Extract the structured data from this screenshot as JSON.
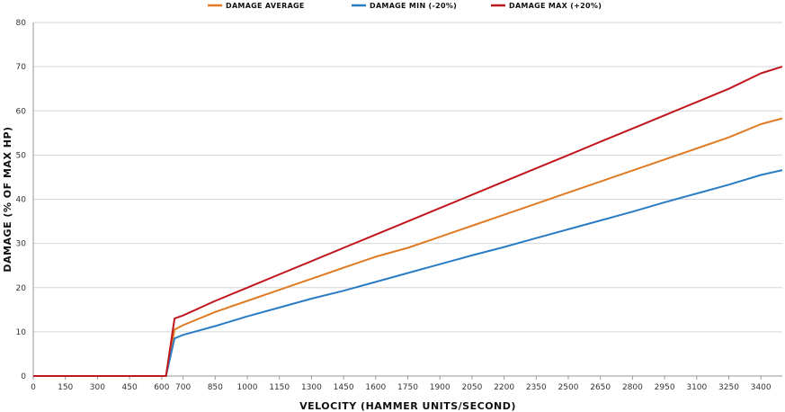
{
  "chart_data": {
    "type": "line",
    "xlabel": "VELOCITY (HAMMER UNITS/SECOND)",
    "ylabel": "DAMAGE (% OF MAX HP)",
    "xlim": [
      0,
      3500
    ],
    "ylim": [
      0,
      80
    ],
    "x_ticks": [
      0,
      150,
      300,
      450,
      600,
      700,
      850,
      1000,
      1150,
      1300,
      1450,
      1600,
      1750,
      1900,
      2050,
      2200,
      2350,
      2500,
      2650,
      2800,
      2950,
      3100,
      3250,
      3400
    ],
    "x_tick_labels": [
      "0",
      "150",
      "300",
      "450",
      "600",
      "700",
      "850",
      "1000",
      "1150",
      "1300",
      "1450",
      "1600",
      "1750",
      "1900",
      "2050",
      "2200",
      "2350",
      "2500",
      "2650",
      "2800",
      "2950",
      "3100",
      "3250",
      "3400"
    ],
    "y_ticks": [
      0,
      10,
      20,
      30,
      40,
      50,
      60,
      70,
      80
    ],
    "y_tick_labels": [
      "0",
      "10",
      "20",
      "30",
      "40",
      "50",
      "60",
      "70",
      "80"
    ],
    "grid": true,
    "legend_position": "top",
    "series": [
      {
        "name": "DAMAGE AVERAGE",
        "color": "#e07b24",
        "points": [
          [
            0,
            0
          ],
          [
            620,
            0
          ],
          [
            660,
            10.5
          ],
          [
            700,
            11.5
          ],
          [
            850,
            14.5
          ],
          [
            1000,
            17
          ],
          [
            1150,
            19.5
          ],
          [
            1300,
            22
          ],
          [
            1450,
            24.5
          ],
          [
            1600,
            27
          ],
          [
            1750,
            29
          ],
          [
            1900,
            31.5
          ],
          [
            2050,
            34
          ],
          [
            2200,
            36.5
          ],
          [
            2350,
            39
          ],
          [
            2500,
            41.5
          ],
          [
            2650,
            44
          ],
          [
            2800,
            46.5
          ],
          [
            2950,
            49
          ],
          [
            3100,
            51.5
          ],
          [
            3250,
            54
          ],
          [
            3400,
            57
          ],
          [
            3500,
            58.3
          ]
        ]
      },
      {
        "name": "DAMAGE MIN (-20%)",
        "color": "#2a7dc4",
        "points": [
          [
            0,
            0
          ],
          [
            620,
            0
          ],
          [
            660,
            8.5
          ],
          [
            700,
            9.3
          ],
          [
            850,
            11.3
          ],
          [
            1000,
            13.5
          ],
          [
            1150,
            15.5
          ],
          [
            1300,
            17.5
          ],
          [
            1450,
            19.3
          ],
          [
            1600,
            21.3
          ],
          [
            1750,
            23.3
          ],
          [
            1900,
            25.3
          ],
          [
            2050,
            27.3
          ],
          [
            2200,
            29.2
          ],
          [
            2350,
            31.2
          ],
          [
            2500,
            33.2
          ],
          [
            2650,
            35.2
          ],
          [
            2800,
            37.2
          ],
          [
            2950,
            39.3
          ],
          [
            3100,
            41.3
          ],
          [
            3250,
            43.3
          ],
          [
            3400,
            45.5
          ],
          [
            3500,
            46.6
          ]
        ]
      },
      {
        "name": "DAMAGE MAX (+20%)",
        "color": "#c0161e",
        "points": [
          [
            0,
            0
          ],
          [
            620,
            0
          ],
          [
            660,
            13
          ],
          [
            700,
            13.7
          ],
          [
            850,
            17
          ],
          [
            1000,
            20
          ],
          [
            1150,
            23
          ],
          [
            1300,
            26
          ],
          [
            1450,
            29
          ],
          [
            1600,
            32
          ],
          [
            1750,
            35
          ],
          [
            1900,
            38
          ],
          [
            2050,
            41
          ],
          [
            2200,
            44
          ],
          [
            2350,
            47
          ],
          [
            2500,
            50
          ],
          [
            2650,
            53
          ],
          [
            2800,
            56
          ],
          [
            2950,
            59
          ],
          [
            3100,
            62
          ],
          [
            3250,
            65
          ],
          [
            3400,
            68.5
          ],
          [
            3500,
            70
          ]
        ]
      }
    ]
  }
}
